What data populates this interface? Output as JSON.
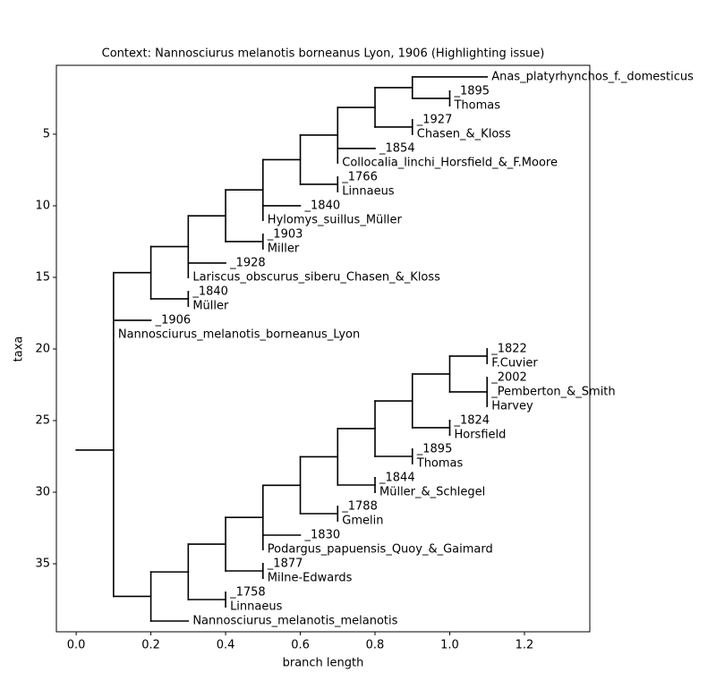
{
  "chart_data": {
    "type": "tree",
    "title": "Context: Nannosciurus melanotis borneanus Lyon, 1906 (Highlighting issue)",
    "x_label": "branch length",
    "y_label": "taxa",
    "xlim": [
      -0.053,
      1.375
    ],
    "ylim": [
      0.19,
      39.75
    ],
    "y_inverted": true,
    "xticks": [
      {
        "value": 0,
        "label": "0.0"
      },
      0.2,
      0.4,
      0.6,
      0.8,
      {
        "value": 1,
        "label": "1.0"
      },
      1.2
    ],
    "yticks": [
      5,
      10,
      15,
      20,
      25,
      30,
      35
    ],
    "color": "#000000",
    "tree": {
      "x": 0.1,
      "y": 27.06,
      "clades": [
        {
          "x": 0.2,
          "y": 14.67,
          "clades": [
            {
              "x": 0.3,
              "y": 12.85,
              "clades": [
                {
                  "x": 0.4,
                  "y": 10.7,
                  "clades": [
                    {
                      "x": 0.5,
                      "y": 8.89,
                      "clades": [
                        {
                          "x": 0.6,
                          "y": 6.78,
                          "clades": [
                            {
                              "x": 0.7,
                              "y": 5.06,
                              "clades": [
                                {
                                  "x": 0.8,
                                  "y": 3.13,
                                  "clades": [
                                    {
                                      "x": 0.9,
                                      "y": 1.75,
                                      "clades": [
                                        {
                                          "name": "Anas_platyrhynchos_f._domesticus",
                                          "x": 1.1,
                                          "y": 1
                                        },
                                        {
                                          "x": 1.0,
                                          "y": 2.5,
                                          "clades": [
                                            {
                                              "name": "_1895",
                                              "x": 1.0,
                                              "y": 2
                                            },
                                            {
                                              "name": "Thomas",
                                              "x": 1.0,
                                              "y": 3
                                            }
                                          ]
                                        }
                                      ]
                                    },
                                    {
                                      "x": 0.9,
                                      "y": 4.5,
                                      "clades": [
                                        {
                                          "name": "_1927",
                                          "x": 0.9,
                                          "y": 4
                                        },
                                        {
                                          "name": "Chasen_&_Kloss",
                                          "x": 0.9,
                                          "y": 5
                                        }
                                      ]
                                    }
                                  ]
                                },
                                {
                                  "name": "_1854",
                                  "x": 0.8,
                                  "y": 6
                                },
                                {
                                  "name": "Collocalia_linchi_Horsfield_&_F.Moore",
                                  "x": 0.7,
                                  "y": 7
                                }
                              ]
                            },
                            {
                              "x": 0.7,
                              "y": 8.5,
                              "clades": [
                                {
                                  "name": "_1766",
                                  "x": 0.7,
                                  "y": 8
                                },
                                {
                                  "name": "Linnaeus",
                                  "x": 0.7,
                                  "y": 9
                                }
                              ]
                            }
                          ]
                        },
                        {
                          "name": "_1840",
                          "x": 0.6,
                          "y": 10
                        },
                        {
                          "name": "Hylomys_suillus_Müller",
                          "x": 0.5,
                          "y": 11
                        }
                      ]
                    },
                    {
                      "x": 0.5,
                      "y": 12.5,
                      "clades": [
                        {
                          "name": "_1903",
                          "x": 0.5,
                          "y": 12
                        },
                        {
                          "name": "Miller",
                          "x": 0.5,
                          "y": 13
                        }
                      ]
                    }
                  ]
                },
                {
                  "name": "_1928",
                  "x": 0.4,
                  "y": 14
                },
                {
                  "name": "Lariscus_obscurus_siberu_Chasen_&_Kloss",
                  "x": 0.3,
                  "y": 15
                }
              ]
            },
            {
              "x": 0.3,
              "y": 16.5,
              "clades": [
                {
                  "name": "_1840",
                  "x": 0.3,
                  "y": 16
                },
                {
                  "name": "Müller",
                  "x": 0.3,
                  "y": 17
                }
              ]
            }
          ]
        },
        {
          "name": "_1906",
          "x": 0.2,
          "y": 18
        },
        {
          "name": "Nannosciurus_melanotis_borneanus_Lyon",
          "x": 0.1,
          "y": 19
        },
        {
          "x": 0.2,
          "y": 37.28,
          "clades": [
            {
              "x": 0.3,
              "y": 35.57,
              "clades": [
                {
                  "x": 0.4,
                  "y": 33.63,
                  "clades": [
                    {
                      "x": 0.5,
                      "y": 31.76,
                      "clades": [
                        {
                          "x": 0.6,
                          "y": 29.52,
                          "clades": [
                            {
                              "x": 0.7,
                              "y": 27.53,
                              "clades": [
                                {
                                  "x": 0.8,
                                  "y": 25.56,
                                  "clades": [
                                    {
                                      "x": 0.9,
                                      "y": 23.63,
                                      "clades": [
                                        {
                                          "x": 1.0,
                                          "y": 21.75,
                                          "clades": [
                                            {
                                              "x": 1.1,
                                              "y": 20.5,
                                              "clades": [
                                                {
                                                  "name": "_1822",
                                                  "x": 1.1,
                                                  "y": 20
                                                },
                                                {
                                                  "name": "F.Cuvier",
                                                  "x": 1.1,
                                                  "y": 21
                                                }
                                              ]
                                            },
                                            {
                                              "x": 1.1,
                                              "y": 23,
                                              "clades": [
                                                {
                                                  "name": "_2002",
                                                  "x": 1.1,
                                                  "y": 22
                                                },
                                                {
                                                  "name": "_Pemberton_&_Smith",
                                                  "x": 1.1,
                                                  "y": 23
                                                },
                                                {
                                                  "name": "Harvey",
                                                  "x": 1.1,
                                                  "y": 24
                                                }
                                              ]
                                            }
                                          ]
                                        },
                                        {
                                          "x": 1.0,
                                          "y": 25.5,
                                          "clades": [
                                            {
                                              "name": "_1824",
                                              "x": 1.0,
                                              "y": 25
                                            },
                                            {
                                              "name": "Horsfield",
                                              "x": 1.0,
                                              "y": 26
                                            }
                                          ]
                                        }
                                      ]
                                    },
                                    {
                                      "x": 0.9,
                                      "y": 27.5,
                                      "clades": [
                                        {
                                          "name": "_1895",
                                          "x": 0.9,
                                          "y": 27
                                        },
                                        {
                                          "name": "Thomas",
                                          "x": 0.9,
                                          "y": 28
                                        }
                                      ]
                                    }
                                  ]
                                },
                                {
                                  "x": 0.8,
                                  "y": 29.5,
                                  "clades": [
                                    {
                                      "name": "_1844",
                                      "x": 0.8,
                                      "y": 29
                                    },
                                    {
                                      "name": "Müller_&_Schlegel",
                                      "x": 0.8,
                                      "y": 30
                                    }
                                  ]
                                }
                              ]
                            },
                            {
                              "x": 0.7,
                              "y": 31.5,
                              "clades": [
                                {
                                  "name": "_1788",
                                  "x": 0.7,
                                  "y": 31
                                },
                                {
                                  "name": "Gmelin",
                                  "x": 0.7,
                                  "y": 32
                                }
                              ]
                            }
                          ]
                        },
                        {
                          "name": "_1830",
                          "x": 0.6,
                          "y": 33
                        },
                        {
                          "name": "Podargus_papuensis_Quoy_&_Gaimard",
                          "x": 0.5,
                          "y": 34
                        }
                      ]
                    },
                    {
                      "x": 0.5,
                      "y": 35.5,
                      "clades": [
                        {
                          "name": "_1877",
                          "x": 0.5,
                          "y": 35
                        },
                        {
                          "name": "Milne-Edwards",
                          "x": 0.5,
                          "y": 36
                        }
                      ]
                    }
                  ]
                },
                {
                  "x": 0.4,
                  "y": 37.5,
                  "clades": [
                    {
                      "name": "_1758",
                      "x": 0.4,
                      "y": 37
                    },
                    {
                      "name": "Linnaeus",
                      "x": 0.4,
                      "y": 38
                    }
                  ]
                }
              ]
            },
            {
              "name": "Nannosciurus_melanotis_melanotis",
              "x": 0.3,
              "y": 39
            }
          ]
        }
      ]
    }
  }
}
